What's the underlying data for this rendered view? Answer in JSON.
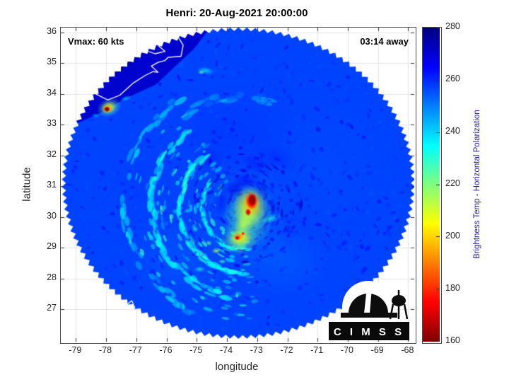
{
  "logo": {
    "text": "C I M S S"
  },
  "chart_data": {
    "type": "heatmap",
    "title": "Henri: 20-Aug-2021 20:00:00",
    "xlabel": "longitude",
    "ylabel": "latitude",
    "xlim": [
      -79.5,
      -67.8
    ],
    "ylim": [
      25.95,
      36.15
    ],
    "xticks": [
      -79,
      -78,
      -77,
      -76,
      -75,
      -74,
      -73,
      -72,
      -71,
      -70,
      -69,
      -68
    ],
    "yticks": [
      27,
      28,
      29,
      30,
      31,
      32,
      33,
      34,
      35,
      36
    ],
    "grid": true,
    "annotations": {
      "vmax": "Vmax: 60 kts",
      "eta": "03:14 away"
    },
    "colorbar": {
      "label": "Brightness Temp - Horizontal Polarization",
      "ticks": [
        160,
        180,
        200,
        220,
        240,
        260,
        280
      ],
      "vmin": 160,
      "vmax": 280,
      "units": "K",
      "colormap": "reversed jet (low values dark red, high values dark blue)"
    },
    "swath": {
      "center_lon": -73.62,
      "center_lat": 31.1,
      "radius_lon": 5.78,
      "radius_lat": 5.0,
      "base_value": 257
    },
    "storm_center": {
      "lon": -73.45,
      "lat": 30.35
    },
    "speckle": {
      "seed": 7,
      "general": 650,
      "center": 260,
      "sw": 170
    },
    "shading": [
      {
        "lon": -73.4,
        "lat": 30.0,
        "rx": 1.6,
        "ry": 1.9,
        "v": 250,
        "a": 0.5
      },
      {
        "lon": -72.2,
        "lat": 28.6,
        "rx": 1.6,
        "ry": 1.2,
        "v": 252,
        "a": 0.45
      },
      {
        "lon": -75.6,
        "lat": 28.6,
        "rx": 1.6,
        "ry": 1.3,
        "v": 253,
        "a": 0.4
      },
      {
        "lon": -70.8,
        "lat": 31.6,
        "rx": 2.2,
        "ry": 2.2,
        "v": 255,
        "a": 0.3
      },
      {
        "lon": -73.9,
        "lat": 32.7,
        "rx": 2.3,
        "ry": 1.6,
        "v": 260,
        "a": 0.35
      },
      {
        "lon": -76.8,
        "lat": 31.2,
        "rx": 1.4,
        "ry": 1.8,
        "v": 259,
        "a": 0.3
      },
      {
        "lon": -73.75,
        "lat": 30.9,
        "rx": 0.45,
        "ry": 0.3,
        "rot": -30,
        "v": 268,
        "a": 0.75
      },
      {
        "lon": -73.35,
        "lat": 31.15,
        "rx": 0.5,
        "ry": 0.25,
        "rot": 20,
        "v": 266,
        "a": 0.65
      },
      {
        "lon": -72.9,
        "lat": 30.8,
        "rx": 0.3,
        "ry": 0.45,
        "v": 264,
        "a": 0.55
      },
      {
        "lon": -74.2,
        "lat": 30.4,
        "rx": 0.3,
        "ry": 0.5,
        "rot": 15,
        "v": 263,
        "a": 0.55
      },
      {
        "lon": -73.0,
        "lat": 31.7,
        "rx": 0.6,
        "ry": 0.3,
        "rot": 30,
        "v": 263,
        "a": 0.5
      },
      {
        "lon": -74.6,
        "lat": 31.9,
        "rx": 0.5,
        "ry": 0.35,
        "rot": -20,
        "v": 262,
        "a": 0.5
      },
      {
        "lon": -72.3,
        "lat": 31.9,
        "rx": 0.7,
        "ry": 0.4,
        "rot": 25,
        "v": 261,
        "a": 0.45
      }
    ],
    "bands": [
      {
        "clon": -73.45,
        "clat": 30.3,
        "r": 1.35,
        "a0": 80,
        "a1": 215,
        "v": 237,
        "w": 9,
        "gap": 0.25
      },
      {
        "clon": -73.45,
        "clat": 30.3,
        "r": 2.1,
        "a0": 90,
        "a1": 230,
        "v": 234,
        "w": 11,
        "gap": 0.3
      },
      {
        "clon": -73.5,
        "clat": 30.4,
        "r": 3.0,
        "a0": 100,
        "a1": 235,
        "v": 238,
        "w": 12,
        "gap": 0.35
      },
      {
        "clon": -73.5,
        "clat": 30.5,
        "r": 3.9,
        "a0": 115,
        "a1": 240,
        "v": 243,
        "w": 12,
        "gap": 0.42
      },
      {
        "clon": -73.5,
        "clat": 30.5,
        "r": 3.4,
        "a0": 235,
        "a1": 285,
        "v": 249,
        "w": 14,
        "gap": 0.5
      }
    ],
    "features": [
      {
        "lon": -73.3,
        "lat": 30.0,
        "rx": 0.85,
        "ry": 1.15,
        "rot": 10,
        "v": 224,
        "a": 0.85
      },
      {
        "lon": -73.25,
        "lat": 30.3,
        "rx": 0.55,
        "ry": 0.7,
        "rot": 5,
        "v": 207,
        "a": 0.92
      },
      {
        "lon": -73.2,
        "lat": 30.45,
        "rx": 0.34,
        "ry": 0.42,
        "v": 193,
        "a": 0.95
      },
      {
        "lon": -73.18,
        "lat": 30.52,
        "rx": 0.2,
        "ry": 0.28,
        "v": 175,
        "a": 1,
        "hard": 0.5
      },
      {
        "lon": -73.16,
        "lat": 30.56,
        "rx": 0.13,
        "ry": 0.2,
        "v": 163,
        "a": 1,
        "hard": 0.55
      },
      {
        "lon": -73.3,
        "lat": 30.15,
        "rx": 0.1,
        "ry": 0.13,
        "v": 170,
        "a": 1,
        "hard": 0.4
      },
      {
        "lon": -73.45,
        "lat": 29.75,
        "rx": 0.3,
        "ry": 0.45,
        "rot": 20,
        "v": 213,
        "a": 0.85
      },
      {
        "lon": -73.6,
        "lat": 29.25,
        "rx": 0.62,
        "ry": 0.48,
        "rot": -10,
        "v": 221,
        "a": 0.85
      },
      {
        "lon": -73.55,
        "lat": 29.32,
        "rx": 0.38,
        "ry": 0.28,
        "rot": -10,
        "v": 203,
        "a": 0.9
      },
      {
        "lon": -73.62,
        "lat": 29.35,
        "rx": 0.17,
        "ry": 0.13,
        "v": 186,
        "a": 0.95
      },
      {
        "lon": -73.66,
        "lat": 29.32,
        "rx": 0.09,
        "ry": 0.07,
        "v": 171,
        "a": 1,
        "hard": 0.4
      },
      {
        "lon": -73.47,
        "lat": 29.46,
        "rx": 0.06,
        "ry": 0.06,
        "v": 176,
        "a": 1,
        "hard": 0.3
      },
      {
        "lon": -72.55,
        "lat": 29.95,
        "rx": 0.35,
        "ry": 0.14,
        "rot": -15,
        "v": 231,
        "a": 0.7
      },
      {
        "lon": -74.35,
        "lat": 28.9,
        "rx": 0.16,
        "ry": 0.1,
        "v": 215,
        "a": 0.85
      },
      {
        "lon": -74.6,
        "lat": 29.15,
        "rx": 0.12,
        "ry": 0.09,
        "v": 222,
        "a": 0.8
      },
      {
        "lon": -74.15,
        "lat": 28.55,
        "rx": 0.14,
        "ry": 0.08,
        "v": 225,
        "a": 0.8
      },
      {
        "lon": -75.05,
        "lat": 29.6,
        "rx": 0.12,
        "ry": 0.1,
        "v": 228,
        "a": 0.7
      },
      {
        "lon": -75.3,
        "lat": 30.2,
        "rx": 0.14,
        "ry": 0.09,
        "v": 233,
        "a": 0.7
      },
      {
        "lon": -74.9,
        "lat": 28.3,
        "rx": 0.2,
        "ry": 0.1,
        "v": 230,
        "a": 0.7
      },
      {
        "lon": -73.9,
        "lat": 28.2,
        "rx": 0.25,
        "ry": 0.12,
        "v": 235,
        "a": 0.7
      },
      {
        "lon": -74.7,
        "lat": 34.75,
        "rx": 0.3,
        "ry": 0.12,
        "rot": 10,
        "v": 235,
        "a": 0.7
      },
      {
        "lon": -74.85,
        "lat": 34.7,
        "rx": 0.12,
        "ry": 0.08,
        "v": 222,
        "a": 0.8
      },
      {
        "lon": -77.9,
        "lat": 33.55,
        "rx": 0.42,
        "ry": 0.3,
        "rot": -20,
        "v": 222,
        "a": 0.85
      },
      {
        "lon": -77.92,
        "lat": 33.55,
        "rx": 0.26,
        "ry": 0.2,
        "rot": -20,
        "v": 203,
        "a": 0.9
      },
      {
        "lon": -77.95,
        "lat": 33.52,
        "rx": 0.16,
        "ry": 0.13,
        "v": 188,
        "a": 0.95
      },
      {
        "lon": -77.97,
        "lat": 33.5,
        "rx": 0.1,
        "ry": 0.09,
        "v": 164,
        "a": 1,
        "hard": 0.5
      },
      {
        "lon": -77.35,
        "lat": 33.85,
        "rx": 0.2,
        "ry": 0.08,
        "rot": -20,
        "v": 238,
        "a": 0.7
      },
      {
        "lon": -78.35,
        "lat": 33.3,
        "rx": 0.15,
        "ry": 0.07,
        "v": 240,
        "a": 0.6
      }
    ],
    "land": [
      {
        "pts": [
          [
            -79.5,
            36.15
          ],
          [
            -74.55,
            36.15
          ],
          [
            -75.1,
            35.45
          ],
          [
            -75.65,
            34.95
          ],
          [
            -76.35,
            34.3
          ],
          [
            -77.35,
            33.85
          ],
          [
            -78.25,
            33.35
          ],
          [
            -79.05,
            33.0
          ],
          [
            -79.5,
            32.9
          ]
        ],
        "v": 271,
        "a": 0.95
      },
      {
        "pts": [
          [
            -79.5,
            36.15
          ],
          [
            -76.1,
            36.15
          ],
          [
            -76.75,
            35.3
          ],
          [
            -77.8,
            34.5
          ],
          [
            -78.8,
            33.9
          ],
          [
            -79.5,
            33.55
          ]
        ],
        "v": 276,
        "a": 0.9
      }
    ],
    "coastlines": [
      [
        [
          -79.5,
          34.85
        ],
        [
          -78.9,
          34.35
        ],
        [
          -78.35,
          34.0
        ],
        [
          -77.95,
          33.8
        ],
        [
          -77.55,
          33.95
        ],
        [
          -77.1,
          34.35
        ],
        [
          -76.7,
          34.6
        ],
        [
          -76.45,
          34.72
        ],
        [
          -76.28,
          34.7
        ],
        [
          -76.5,
          34.9
        ],
        [
          -76.28,
          35.02
        ],
        [
          -76.05,
          35.08
        ],
        [
          -75.95,
          35.18
        ]
      ],
      [
        [
          -75.95,
          35.18
        ],
        [
          -75.52,
          35.22
        ],
        [
          -75.45,
          35.58
        ],
        [
          -75.6,
          35.82
        ],
        [
          -75.88,
          36.02
        ],
        [
          -75.98,
          36.15
        ]
      ],
      [
        [
          -76.05,
          36.15
        ],
        [
          -76.18,
          35.92
        ],
        [
          -76.42,
          35.72
        ],
        [
          -76.22,
          35.52
        ],
        [
          -76.05,
          35.38
        ],
        [
          -76.38,
          35.3
        ],
        [
          -76.72,
          35.42
        ],
        [
          -76.5,
          35.62
        ],
        [
          -76.72,
          35.72
        ],
        [
          -76.6,
          35.92
        ],
        [
          -76.78,
          36.12
        ]
      ],
      [
        [
          -77.05,
          36.15
        ],
        [
          -76.92,
          35.88
        ],
        [
          -77.12,
          35.72
        ],
        [
          -76.9,
          35.55
        ]
      ],
      [
        [
          -79.35,
          26.72
        ],
        [
          -78.82,
          26.62
        ],
        [
          -78.3,
          26.55
        ],
        [
          -77.95,
          26.68
        ],
        [
          -78.42,
          26.74
        ],
        [
          -78.98,
          26.76
        ],
        [
          -79.35,
          26.72
        ]
      ],
      [
        [
          -77.78,
          26.18
        ],
        [
          -77.48,
          26.45
        ],
        [
          -77.22,
          26.75
        ],
        [
          -77.05,
          27.05
        ],
        [
          -77.15,
          27.28
        ],
        [
          -77.38,
          27.1
        ],
        [
          -77.28,
          26.82
        ],
        [
          -77.55,
          26.5
        ],
        [
          -77.82,
          26.32
        ]
      ]
    ]
  }
}
